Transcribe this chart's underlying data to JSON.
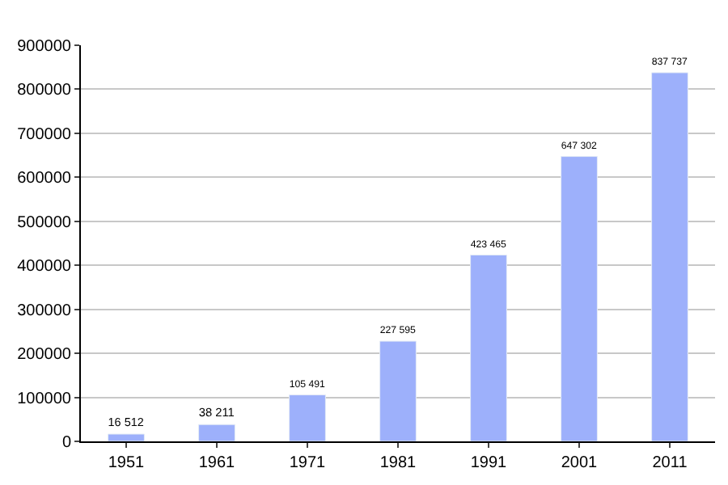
{
  "chart_data": {
    "type": "bar",
    "categories": [
      "1951",
      "1961",
      "1971",
      "1981",
      "1991",
      "2001",
      "2011"
    ],
    "values": [
      16512,
      38211,
      105491,
      227595,
      423465,
      647302,
      837737
    ],
    "value_labels": [
      "16 512",
      "38 211",
      "105 491",
      "227 595",
      "423 465",
      "647 302",
      "837 737"
    ],
    "color": "#9db0fb",
    "ylim": [
      0,
      900000
    ],
    "yticks": [
      0,
      100000,
      200000,
      300000,
      400000,
      500000,
      600000,
      700000,
      800000,
      900000
    ],
    "grid": "y"
  }
}
